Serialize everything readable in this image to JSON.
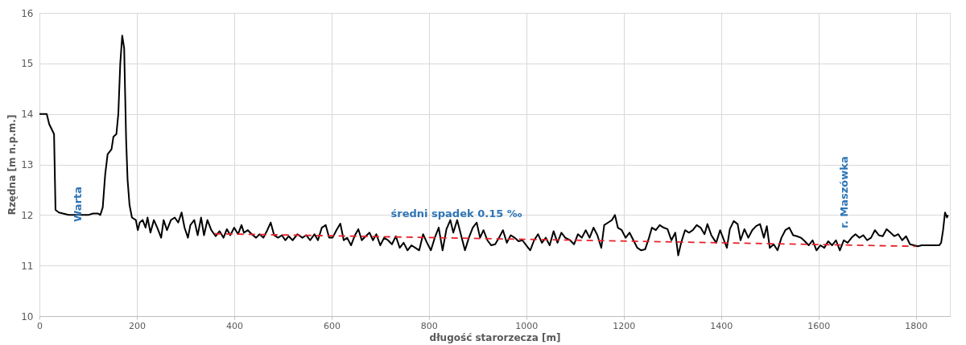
{
  "chart_data": {
    "type": "line",
    "xlabel": "długość starorzecza [m]",
    "ylabel": "Rzędna [m n.p.m.]",
    "xlim": [
      0,
      1870
    ],
    "ylim": [
      10,
      16
    ],
    "xticks": [
      0,
      200,
      400,
      600,
      800,
      1000,
      1200,
      1400,
      1600,
      1800
    ],
    "yticks": [
      10,
      11,
      12,
      13,
      14,
      15,
      16
    ],
    "grid": true,
    "marker": "none",
    "annotations": [
      "Warta",
      "średni spadek 0.15 ‰",
      "r. Maszówka"
    ],
    "series": [
      {
        "color": "#000000",
        "line_style": "solid",
        "x": [
          0,
          10,
          15,
          20,
          25,
          30,
          33,
          40,
          60,
          100,
          110,
          120,
          125,
          130,
          135,
          140,
          148,
          152,
          158,
          162,
          166,
          170,
          174,
          178,
          181,
          185,
          190,
          198,
          202,
          206,
          212,
          218,
          222,
          228,
          235,
          242,
          250,
          255,
          262,
          270,
          278,
          285,
          292,
          298,
          305,
          310,
          318,
          325,
          332,
          338,
          345,
          353,
          362,
          370,
          378,
          385,
          392,
          400,
          408,
          415,
          420,
          428,
          436,
          445,
          452,
          460,
          468,
          475,
          482,
          490,
          498,
          505,
          512,
          520,
          530,
          540,
          548,
          556,
          565,
          572,
          580,
          588,
          595,
          602,
          610,
          618,
          625,
          632,
          640,
          648,
          655,
          662,
          670,
          678,
          685,
          692,
          700,
          708,
          716,
          724,
          732,
          740,
          748,
          756,
          764,
          772,
          780,
          788,
          796,
          804,
          812,
          820,
          828,
          836,
          844,
          850,
          858,
          866,
          874,
          882,
          890,
          898,
          905,
          912,
          920,
          928,
          936,
          944,
          952,
          960,
          968,
          976,
          984,
          992,
          1000,
          1008,
          1016,
          1024,
          1032,
          1040,
          1048,
          1056,
          1064,
          1072,
          1080,
          1090,
          1098,
          1106,
          1114,
          1122,
          1130,
          1138,
          1146,
          1154,
          1160,
          1168,
          1176,
          1182,
          1188,
          1196,
          1204,
          1212,
          1220,
          1228,
          1236,
          1244,
          1252,
          1258,
          1266,
          1274,
          1282,
          1290,
          1298,
          1306,
          1312,
          1318,
          1326,
          1334,
          1342,
          1350,
          1358,
          1366,
          1372,
          1380,
          1390,
          1398,
          1406,
          1412,
          1418,
          1426,
          1434,
          1440,
          1448,
          1456,
          1464,
          1472,
          1480,
          1488,
          1494,
          1500,
          1508,
          1516,
          1524,
          1532,
          1540,
          1548,
          1556,
          1564,
          1572,
          1580,
          1588,
          1596,
          1604,
          1612,
          1620,
          1628,
          1636,
          1644,
          1652,
          1660,
          1668,
          1676,
          1684,
          1692,
          1700,
          1708,
          1716,
          1724,
          1732,
          1740,
          1748,
          1756,
          1764,
          1772,
          1780,
          1788,
          1796,
          1804,
          1812,
          1820,
          1830,
          1840,
          1848,
          1852,
          1856,
          1860,
          1864,
          1866
        ],
        "values": [
          14.0,
          14.0,
          14.0,
          13.8,
          13.7,
          13.6,
          12.1,
          12.05,
          12.0,
          12.0,
          12.03,
          12.03,
          12.0,
          12.15,
          12.8,
          13.2,
          13.3,
          13.55,
          13.6,
          14.0,
          15.0,
          15.55,
          15.3,
          13.5,
          12.7,
          12.2,
          11.95,
          11.9,
          11.7,
          11.85,
          11.9,
          11.75,
          11.95,
          11.65,
          11.9,
          11.75,
          11.55,
          11.9,
          11.7,
          11.9,
          11.95,
          11.85,
          12.05,
          11.75,
          11.55,
          11.8,
          11.9,
          11.6,
          11.95,
          11.6,
          11.9,
          11.7,
          11.58,
          11.68,
          11.55,
          11.72,
          11.6,
          11.75,
          11.62,
          11.8,
          11.65,
          11.7,
          11.62,
          11.55,
          11.62,
          11.55,
          11.7,
          11.85,
          11.6,
          11.55,
          11.6,
          11.5,
          11.58,
          11.5,
          11.62,
          11.55,
          11.6,
          11.5,
          11.62,
          11.5,
          11.75,
          11.8,
          11.55,
          11.55,
          11.7,
          11.83,
          11.5,
          11.55,
          11.4,
          11.6,
          11.72,
          11.5,
          11.58,
          11.65,
          11.5,
          11.62,
          11.4,
          11.55,
          11.5,
          11.42,
          11.58,
          11.35,
          11.45,
          11.3,
          11.4,
          11.35,
          11.3,
          11.62,
          11.45,
          11.3,
          11.55,
          11.75,
          11.3,
          11.72,
          11.9,
          11.65,
          11.9,
          11.6,
          11.3,
          11.55,
          11.75,
          11.85,
          11.55,
          11.7,
          11.5,
          11.4,
          11.42,
          11.55,
          11.7,
          11.45,
          11.6,
          11.55,
          11.48,
          11.5,
          11.4,
          11.3,
          11.5,
          11.62,
          11.45,
          11.55,
          11.4,
          11.68,
          11.45,
          11.65,
          11.55,
          11.5,
          11.42,
          11.62,
          11.55,
          11.7,
          11.55,
          11.75,
          11.6,
          11.35,
          11.8,
          11.85,
          11.9,
          12.0,
          11.75,
          11.7,
          11.55,
          11.65,
          11.5,
          11.35,
          11.3,
          11.32,
          11.55,
          11.75,
          11.7,
          11.8,
          11.75,
          11.72,
          11.5,
          11.65,
          11.2,
          11.45,
          11.7,
          11.65,
          11.7,
          11.8,
          11.75,
          11.62,
          11.82,
          11.6,
          11.45,
          11.7,
          11.5,
          11.35,
          11.72,
          11.88,
          11.82,
          11.5,
          11.72,
          11.55,
          11.7,
          11.78,
          11.82,
          11.55,
          11.78,
          11.35,
          11.42,
          11.3,
          11.55,
          11.7,
          11.75,
          11.6,
          11.58,
          11.55,
          11.48,
          11.4,
          11.5,
          11.3,
          11.4,
          11.35,
          11.48,
          11.4,
          11.5,
          11.3,
          11.5,
          11.45,
          11.55,
          11.62,
          11.55,
          11.6,
          11.5,
          11.55,
          11.7,
          11.6,
          11.58,
          11.72,
          11.65,
          11.58,
          11.62,
          11.5,
          11.58,
          11.42,
          11.4,
          11.38,
          11.4,
          11.4,
          11.4,
          11.4,
          11.4,
          11.45,
          11.7,
          12.05,
          11.95,
          12.0
        ]
      },
      {
        "color": "#e8202a",
        "line_style": "dashed",
        "x": [
          360,
          1800
        ],
        "values": [
          11.63,
          11.38
        ]
      }
    ]
  }
}
